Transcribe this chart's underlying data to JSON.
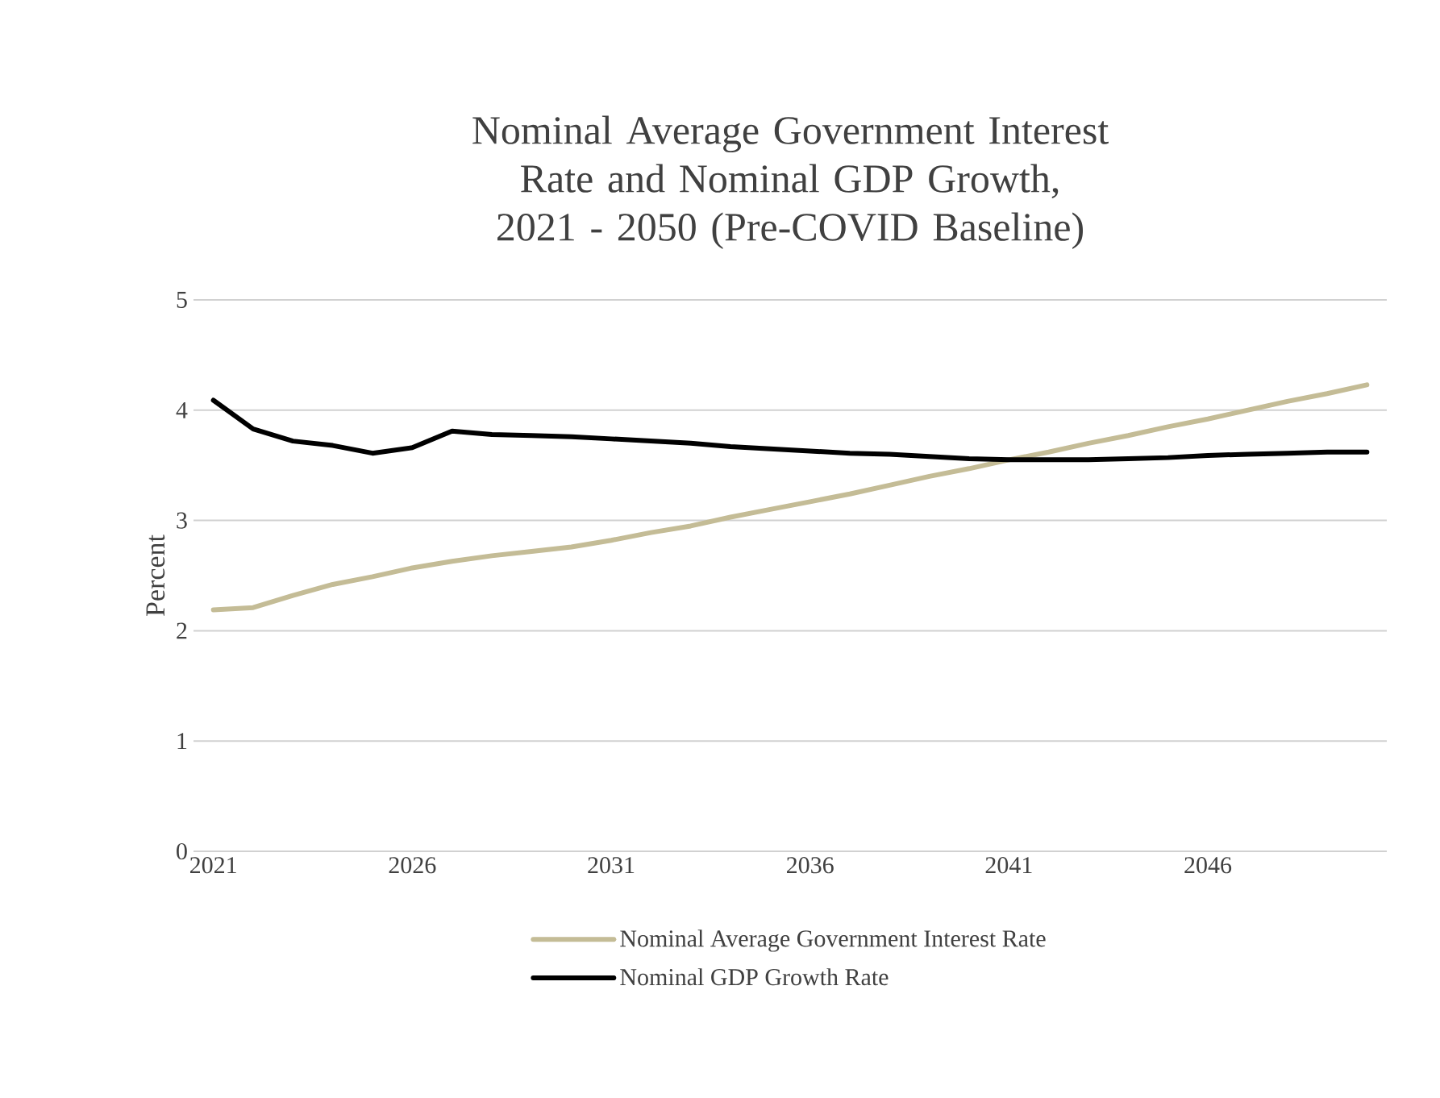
{
  "chart_data": {
    "type": "line",
    "title": "Nominal Average Government Interest Rate and Nominal GDP Growth, 2021 - 2050 (Pre-COVID Baseline)",
    "ylabel": "Percent",
    "x": [
      2021,
      2022,
      2023,
      2024,
      2025,
      2026,
      2027,
      2028,
      2029,
      2030,
      2031,
      2032,
      2033,
      2034,
      2035,
      2036,
      2037,
      2038,
      2039,
      2040,
      2041,
      2042,
      2043,
      2044,
      2045,
      2046,
      2047,
      2048,
      2049,
      2050
    ],
    "series": [
      {
        "name": "Nominal Average Government Interest Rate",
        "color": "#c4bc96",
        "values": [
          2.19,
          2.21,
          2.32,
          2.42,
          2.49,
          2.57,
          2.63,
          2.68,
          2.72,
          2.76,
          2.82,
          2.89,
          2.95,
          3.03,
          3.1,
          3.17,
          3.24,
          3.32,
          3.4,
          3.47,
          3.55,
          3.62,
          3.7,
          3.77,
          3.85,
          3.92,
          4.0,
          4.08,
          4.15,
          4.23
        ]
      },
      {
        "name": "Nominal GDP Growth Rate",
        "color": "#000000",
        "values": [
          4.09,
          3.83,
          3.72,
          3.68,
          3.61,
          3.66,
          3.81,
          3.78,
          3.77,
          3.76,
          3.74,
          3.72,
          3.7,
          3.67,
          3.65,
          3.63,
          3.61,
          3.6,
          3.58,
          3.56,
          3.55,
          3.55,
          3.55,
          3.56,
          3.57,
          3.59,
          3.6,
          3.61,
          3.62,
          3.62
        ]
      }
    ],
    "xlim": [
      2020.5,
      2050.5
    ],
    "xticks": [
      2021,
      2026,
      2031,
      2036,
      2041,
      2046
    ],
    "ylim": [
      0,
      5
    ],
    "yticks": [
      0,
      1,
      2,
      3,
      4,
      5
    ],
    "grid": "y",
    "legend": "bottom",
    "marker": "none",
    "line_style": "solid"
  }
}
